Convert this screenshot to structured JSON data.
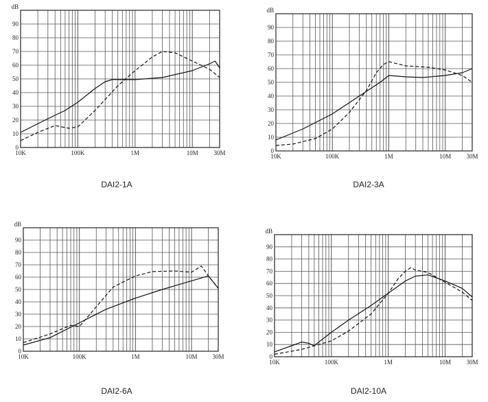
{
  "figures": [
    {
      "id": "dai2-1a",
      "caption": "DAI2-1A",
      "chart_data": {
        "type": "line",
        "title": "DAI2-1A",
        "xscale": "log",
        "xlim": [
          10000,
          30000000
        ],
        "ylim": [
          0,
          100
        ],
        "ylabel": "dB",
        "x_ticks": [
          {
            "value": 10000,
            "label": "10K"
          },
          {
            "value": 100000,
            "label": "100K"
          },
          {
            "value": 1000000,
            "label": "1M"
          },
          {
            "value": 10000000,
            "label": "10M"
          },
          {
            "value": 30000000,
            "label": "30M"
          }
        ],
        "y_ticks": [
          0,
          10,
          20,
          30,
          40,
          50,
          60,
          70,
          80,
          90
        ],
        "y_unit_label": "dB",
        "grid": true,
        "series": [
          {
            "style": "solid",
            "x": [
              10000,
              30000,
              60000,
              100000,
              200000,
              300000,
              400000,
              1000000,
              3000000,
              10000000,
              20000000,
              25000000,
              30000000
            ],
            "y": [
              11,
              21,
              27,
              33,
              43,
              48,
              49.5,
              49.5,
              51,
              56,
              61,
              63,
              58
            ]
          },
          {
            "style": "dashed",
            "x": [
              10000,
              20000,
              40000,
              70000,
              100000,
              200000,
              500000,
              1000000,
              2000000,
              3000000,
              5000000,
              10000000,
              20000000,
              30000000
            ],
            "y": [
              5,
              11,
              16,
              14,
              15,
              27,
              45,
              56,
              66,
              70,
              69,
              63,
              57,
              51
            ]
          }
        ]
      }
    },
    {
      "id": "dai2-3a",
      "caption": "DAI2-3A",
      "chart_data": {
        "type": "line",
        "title": "DAI2-3A",
        "xscale": "log",
        "xlim": [
          10000,
          30000000
        ],
        "ylim": [
          0,
          100
        ],
        "ylabel": "dB",
        "x_ticks": [
          {
            "value": 10000,
            "label": "10K"
          },
          {
            "value": 100000,
            "label": "100K"
          },
          {
            "value": 1000000,
            "label": "1M"
          },
          {
            "value": 10000000,
            "label": "10M"
          },
          {
            "value": 30000000,
            "label": "30M"
          }
        ],
        "y_ticks": [
          0,
          10,
          20,
          30,
          40,
          50,
          60,
          70,
          80,
          90
        ],
        "y_unit_label": "dB",
        "grid": true,
        "series": [
          {
            "style": "solid",
            "x": [
              10000,
              30000,
              100000,
              300000,
              700000,
              1000000,
              2000000,
              4000000,
              10000000,
              20000000,
              30000000
            ],
            "y": [
              8,
              16,
              27,
              40,
              50,
              55,
              54,
              53.5,
              55,
              57,
              60
            ]
          },
          {
            "style": "dashed",
            "x": [
              10000,
              20000,
              50000,
              100000,
              200000,
              400000,
              600000,
              800000,
              1000000,
              2000000,
              5000000,
              10000000,
              20000000,
              30000000
            ],
            "y": [
              4,
              5,
              9,
              16,
              28,
              44,
              57,
              63,
              65,
              62,
              61,
              59,
              55,
              50
            ]
          }
        ]
      }
    },
    {
      "id": "dai2-6a",
      "caption": "DAI2-6A",
      "chart_data": {
        "type": "line",
        "title": "DAI2-6A",
        "xscale": "log",
        "xlim": [
          10000,
          30000000
        ],
        "ylim": [
          0,
          100
        ],
        "ylabel": "dB",
        "x_ticks": [
          {
            "value": 10000,
            "label": "10K"
          },
          {
            "value": 100000,
            "label": "100K"
          },
          {
            "value": 1000000,
            "label": "1M"
          },
          {
            "value": 10000000,
            "label": "10M"
          },
          {
            "value": 30000000,
            "label": "30M"
          }
        ],
        "y_ticks": [
          0,
          10,
          20,
          30,
          40,
          50,
          60,
          70,
          80,
          90
        ],
        "y_unit_label": "dB",
        "grid": true,
        "series": [
          {
            "style": "solid",
            "x": [
              10000,
              30000,
              100000,
              300000,
              1000000,
              3000000,
              10000000,
              20000000,
              30000000
            ],
            "y": [
              5,
              11,
              23,
              34,
              43,
              50,
              57,
              61,
              51
            ]
          },
          {
            "style": "dashed",
            "x": [
              10000,
              30000,
              70000,
              100000,
              200000,
              400000,
              1000000,
              2000000,
              5000000,
              10000000,
              15000000,
              20000000,
              30000000
            ],
            "y": [
              7,
              14,
              21,
              20,
              36,
              52,
              61,
              64.5,
              65,
              64,
              69,
              61,
              51
            ]
          }
        ]
      }
    },
    {
      "id": "dai2-10a",
      "caption": "DAI2-10A",
      "chart_data": {
        "type": "line",
        "title": "DAI2-10A",
        "xscale": "log",
        "xlim": [
          10000,
          30000000
        ],
        "ylim": [
          0,
          100
        ],
        "ylabel": "dB",
        "x_ticks": [
          {
            "value": 10000,
            "label": "10K"
          },
          {
            "value": 100000,
            "label": "100K"
          },
          {
            "value": 1000000,
            "label": "1M"
          },
          {
            "value": 10000000,
            "label": "10M"
          },
          {
            "value": 30000000,
            "label": "30M"
          }
        ],
        "y_ticks": [
          0,
          10,
          20,
          30,
          40,
          50,
          60,
          70,
          80,
          90
        ],
        "y_unit_label": "dB",
        "grid": true,
        "series": [
          {
            "style": "solid",
            "x": [
              10000,
              20000,
              30000,
              40000,
              50000,
              60000,
              100000,
              200000,
              500000,
              1000000,
              2000000,
              3000000,
              5000000,
              10000000,
              20000000,
              30000000
            ],
            "y": [
              4,
              9,
              12,
              11,
              9,
              12,
              20,
              30,
              42,
              52,
              62,
              66,
              67,
              62,
              56,
              49
            ]
          },
          {
            "style": "dashed",
            "x": [
              10000,
              30000,
              60000,
              100000,
              200000,
              500000,
              1000000,
              1500000,
              2000000,
              2500000,
              3000000,
              5000000,
              10000000,
              20000000,
              30000000
            ],
            "y": [
              2,
              6,
              10,
              13,
              21,
              35,
              52,
              64,
              70,
              73,
              71,
              69,
              61,
              53,
              46
            ]
          }
        ]
      }
    }
  ]
}
